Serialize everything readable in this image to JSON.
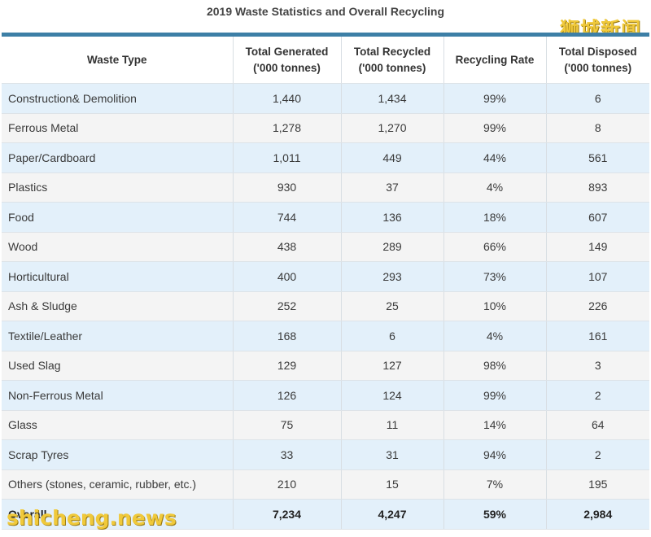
{
  "title": "2019 Waste Statistics and Overall Recycling",
  "headers": {
    "type": "Waste Type",
    "generated_1": "Total Generated",
    "generated_2": "('000 tonnes)",
    "recycled_1": "Total Recycled",
    "recycled_2": "('000 tonnes)",
    "rate": "Recycling Rate",
    "disposed_1": "Total Disposed",
    "disposed_2": "('000 tonnes)"
  },
  "rows": [
    {
      "type": "Construction& Demolition",
      "generated": "1,440",
      "recycled": "1,434",
      "rate": "99%",
      "disposed": "6"
    },
    {
      "type": "Ferrous Metal",
      "generated": "1,278",
      "recycled": "1,270",
      "rate": "99%",
      "disposed": "8"
    },
    {
      "type": "Paper/Cardboard",
      "generated": "1,011",
      "recycled": "449",
      "rate": "44%",
      "disposed": "561"
    },
    {
      "type": "Plastics",
      "generated": "930",
      "recycled": "37",
      "rate": "4%",
      "disposed": "893"
    },
    {
      "type": "Food",
      "generated": "744",
      "recycled": "136",
      "rate": "18%",
      "disposed": "607"
    },
    {
      "type": "Wood",
      "generated": "438",
      "recycled": "289",
      "rate": "66%",
      "disposed": "149"
    },
    {
      "type": "Horticultural",
      "generated": "400",
      "recycled": "293",
      "rate": "73%",
      "disposed": "107"
    },
    {
      "type": "Ash & Sludge",
      "generated": "252",
      "recycled": "25",
      "rate": "10%",
      "disposed": "226"
    },
    {
      "type": "Textile/Leather",
      "generated": "168",
      "recycled": "6",
      "rate": "4%",
      "disposed": "161"
    },
    {
      "type": "Used Slag",
      "generated": "129",
      "recycled": "127",
      "rate": "98%",
      "disposed": "3"
    },
    {
      "type": "Non-Ferrous Metal",
      "generated": "126",
      "recycled": "124",
      "rate": "99%",
      "disposed": "2"
    },
    {
      "type": "Glass",
      "generated": "75",
      "recycled": "11",
      "rate": "14%",
      "disposed": "64"
    },
    {
      "type": "Scrap Tyres",
      "generated": "33",
      "recycled": "31",
      "rate": "94%",
      "disposed": "2"
    },
    {
      "type": "Others (stones, ceramic, rubber, etc.)",
      "generated": "210",
      "recycled": "15",
      "rate": "7%",
      "disposed": "195"
    },
    {
      "type": "Overall",
      "generated": "7,234",
      "recycled": "4,247",
      "rate": "59%",
      "disposed": "2,984"
    }
  ],
  "watermarks": {
    "top_right": "狮城新闻",
    "bottom_left": "shicheng.news"
  },
  "colors": {
    "accent_bar": "#3d7fa6",
    "row_blue": "#e3f0fa",
    "row_gray": "#f4f4f4",
    "watermark": "#f0c93a"
  }
}
